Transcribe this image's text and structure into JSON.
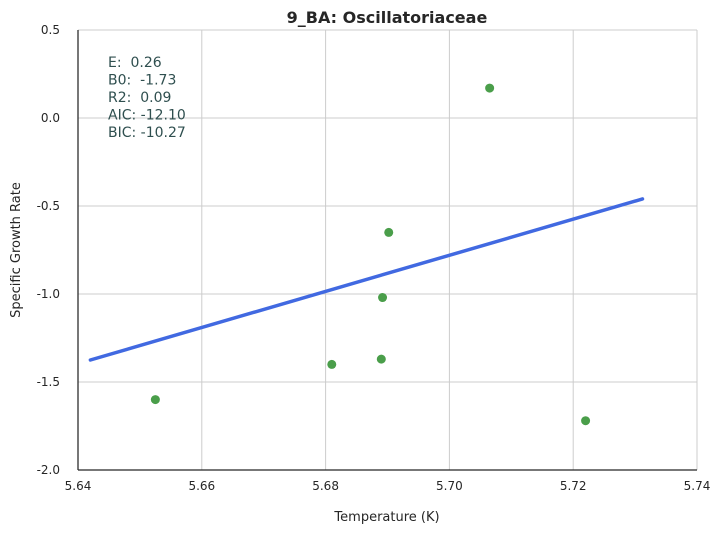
{
  "chart_data": {
    "type": "scatter",
    "title": "9_BA: Oscillatoriaceae",
    "xlabel": "Temperature (K)",
    "ylabel": "Specific Growth Rate",
    "xlim": [
      5.64,
      5.74
    ],
    "ylim": [
      -2.0,
      0.5
    ],
    "xticks": [
      "5.64",
      "5.66",
      "5.68",
      "5.70",
      "5.72",
      "5.74"
    ],
    "yticks": [
      "0.5",
      "0.0",
      "-0.5",
      "-1.0",
      "-1.5",
      "-2.0"
    ],
    "grid": true,
    "points": [
      {
        "x": 5.6525,
        "y": -1.6
      },
      {
        "x": 5.681,
        "y": -1.4
      },
      {
        "x": 5.689,
        "y": -1.37
      },
      {
        "x": 5.6892,
        "y": -1.02
      },
      {
        "x": 5.6902,
        "y": -0.65
      },
      {
        "x": 5.7065,
        "y": 0.17
      },
      {
        "x": 5.722,
        "y": -1.72
      }
    ],
    "fit_line": {
      "x": [
        5.642,
        5.7312
      ],
      "y": [
        -1.375,
        -0.46
      ]
    },
    "stats": [
      "E:  0.26",
      "B0:  -1.73",
      "R2:  0.09",
      "AIC: -12.10",
      "BIC: -10.27"
    ],
    "colors": {
      "points": "#4a9e4a",
      "fit_line": "#4169e1",
      "grid": "#cccccc",
      "axis": "#262626",
      "stats_text": "#2f4f4f"
    }
  }
}
